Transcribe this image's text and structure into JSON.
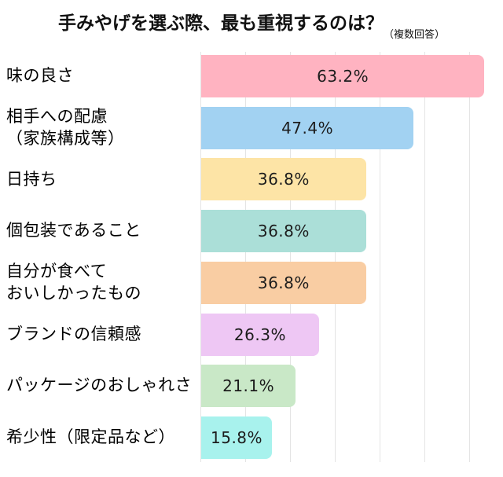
{
  "title": "手みやげを選ぶ際、最も重視するのは？",
  "title_note": "（複数回答）",
  "chart_data": {
    "type": "bar",
    "orientation": "horizontal",
    "title": "手みやげを選ぶ際、最も重視するのは？",
    "subtitle": "（複数回答）",
    "categories": [
      [
        "味の良さ"
      ],
      [
        "相手への配慮",
        "（家族構成等）"
      ],
      [
        "日持ち"
      ],
      [
        "個包装であること"
      ],
      [
        "自分が食べて",
        "おいしかったもの"
      ],
      [
        "ブランドの信頼感"
      ],
      [
        "パッケージのおしゃれさ"
      ],
      [
        "希少性（限定品など）"
      ]
    ],
    "values": [
      63.2,
      47.4,
      36.8,
      36.8,
      36.8,
      26.3,
      21.1,
      15.8
    ],
    "value_labels": [
      "63.2%",
      "47.4%",
      "36.8%",
      "36.8%",
      "36.8%",
      "26.3%",
      "21.1%",
      "15.8%"
    ],
    "bar_colors": [
      "#ffb3c1",
      "#a2d2f2",
      "#fde4a6",
      "#abdfd8",
      "#f9cda3",
      "#eec7f4",
      "#c9e8c7",
      "#a8f2ed"
    ],
    "xlabel": "",
    "ylabel": "",
    "xlim": [
      0,
      67
    ],
    "grid": true,
    "gridline_interval": 10,
    "gridline_color": "#e4e4e4",
    "value_label_position": "center",
    "legend": "none"
  }
}
